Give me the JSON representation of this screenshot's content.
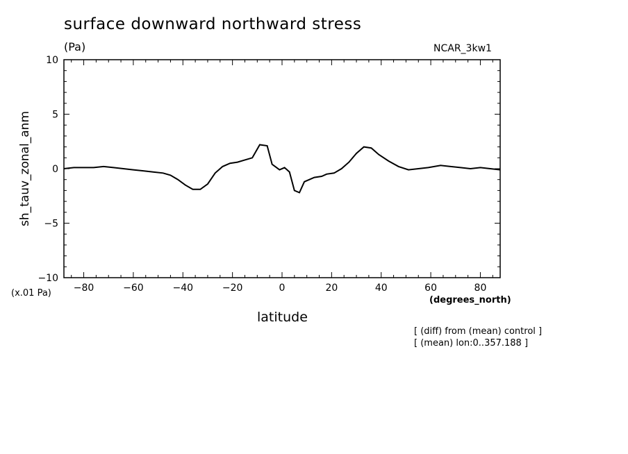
{
  "header": {
    "title": "surface downward northward stress",
    "units": "(Pa)",
    "dataset": "NCAR_3kw1"
  },
  "axes": {
    "ylabel": "sh_tauv_zonal_anm",
    "yscale": "(x.01 Pa)",
    "xlabel": "latitude",
    "xunits": "(degrees_north)"
  },
  "notes": [
    "[ (diff) from (mean) control ]",
    "[ (mean) lon:0..357.188 ]"
  ],
  "chart_data": {
    "type": "line",
    "title": "surface downward northward stress",
    "xlabel": "latitude",
    "ylabel": "sh_tauv_zonal_anm",
    "xlim": [
      -88,
      88
    ],
    "ylim": [
      -10,
      10
    ],
    "xticks": [
      -80,
      -60,
      -40,
      -20,
      0,
      20,
      40,
      60,
      80
    ],
    "xtick_labels": [
      "−80",
      "−60",
      "−40",
      "−20",
      "0",
      "20",
      "40",
      "60",
      "80"
    ],
    "yticks": [
      -10,
      -5,
      0,
      5,
      10
    ],
    "ytick_labels": [
      "−10",
      "−5",
      "0",
      "5",
      "10"
    ],
    "grid": false,
    "series": [
      {
        "color": "#000000",
        "x": [
          -88,
          -84,
          -80,
          -76,
          -72,
          -68,
          -64,
          -60,
          -56,
          -52,
          -48,
          -45,
          -42,
          -39,
          -36,
          -33,
          -30,
          -27,
          -24,
          -21,
          -18,
          -15,
          -12,
          -9,
          -6,
          -4,
          -1,
          1,
          3,
          5,
          7,
          9,
          11,
          13,
          16,
          18,
          21,
          24,
          27,
          30,
          33,
          36,
          39,
          43,
          47,
          51,
          55,
          59,
          64,
          68,
          72,
          76,
          80,
          84,
          88
        ],
        "y": [
          0.0,
          0.1,
          0.1,
          0.1,
          0.2,
          0.1,
          0.0,
          -0.1,
          -0.2,
          -0.3,
          -0.4,
          -0.6,
          -1.0,
          -1.5,
          -1.9,
          -1.9,
          -1.4,
          -0.4,
          0.2,
          0.5,
          0.6,
          0.8,
          1.0,
          2.2,
          2.1,
          0.4,
          -0.1,
          0.1,
          -0.3,
          -2.0,
          -2.2,
          -1.2,
          -1.0,
          -0.8,
          -0.7,
          -0.5,
          -0.4,
          0.0,
          0.6,
          1.4,
          2.0,
          1.9,
          1.3,
          0.7,
          0.2,
          -0.1,
          0.0,
          0.1,
          0.3,
          0.2,
          0.1,
          0.0,
          0.1,
          0.0,
          -0.1
        ]
      }
    ]
  }
}
